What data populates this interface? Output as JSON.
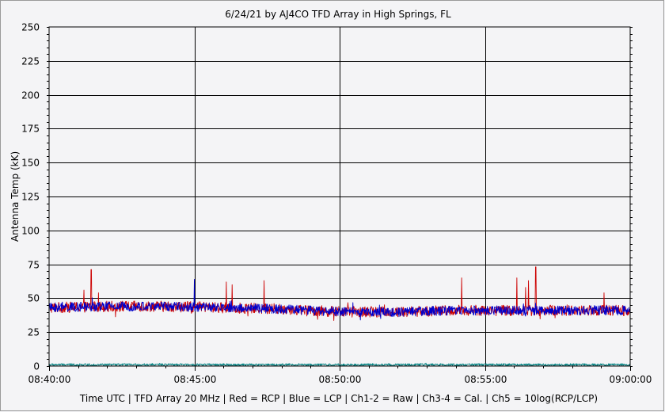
{
  "chart_data": {
    "type": "line",
    "title": "6/24/21  by  AJ4CO TFD Array  in  High Springs, FL",
    "ylabel": "Antenna Temp (kK)",
    "xlabel": "Time UTC | TFD Array 20 MHz | Red = RCP | Blue = LCP | Ch1-2 = Raw | Ch3-4 = Cal. | Ch5 = 10log(RCP/LCP)",
    "ylim": [
      0,
      250
    ],
    "y_ticks": [
      "0",
      "25",
      "50",
      "75",
      "100",
      "125",
      "150",
      "175",
      "200",
      "225",
      "250"
    ],
    "x_range_minutes": [
      0,
      20
    ],
    "x_ticks": [
      "08:40:00",
      "08:45:00",
      "08:50:00",
      "08:55:00",
      "09:00:00"
    ],
    "grid": true,
    "background": "#f4f4f6",
    "series": [
      {
        "name": "RCP",
        "color": "#cc0000",
        "baseline": [
          [
            0,
            43
          ],
          [
            2,
            44
          ],
          [
            4,
            44
          ],
          [
            6,
            43
          ],
          [
            8,
            42
          ],
          [
            10,
            40
          ],
          [
            12,
            40
          ],
          [
            14,
            41
          ],
          [
            16,
            41
          ],
          [
            18,
            41
          ],
          [
            20,
            41
          ]
        ],
        "noise": 4,
        "peaks": [
          [
            1.45,
            74
          ],
          [
            1.2,
            56
          ],
          [
            1.7,
            54
          ],
          [
            6.1,
            62
          ],
          [
            6.3,
            60
          ],
          [
            7.4,
            63
          ],
          [
            14.2,
            65
          ],
          [
            16.1,
            65
          ],
          [
            16.5,
            63
          ],
          [
            16.75,
            76
          ],
          [
            16.4,
            58
          ],
          [
            19.1,
            54
          ]
        ]
      },
      {
        "name": "LCP",
        "color": "#0000cc",
        "baseline": [
          [
            0,
            43
          ],
          [
            2,
            44
          ],
          [
            4,
            44
          ],
          [
            6,
            43
          ],
          [
            8,
            42
          ],
          [
            10,
            40
          ],
          [
            12,
            40
          ],
          [
            14,
            41
          ],
          [
            16,
            41
          ],
          [
            18,
            41
          ],
          [
            20,
            41
          ]
        ],
        "noise": 3.5,
        "peaks": [
          [
            5.0,
            64
          ]
        ]
      },
      {
        "name": "Ch5 = 10log(RCP/LCP)",
        "color": "#008080",
        "baseline": [
          [
            0,
            1
          ],
          [
            20,
            1
          ]
        ],
        "noise": 0.8,
        "peaks": []
      }
    ]
  }
}
